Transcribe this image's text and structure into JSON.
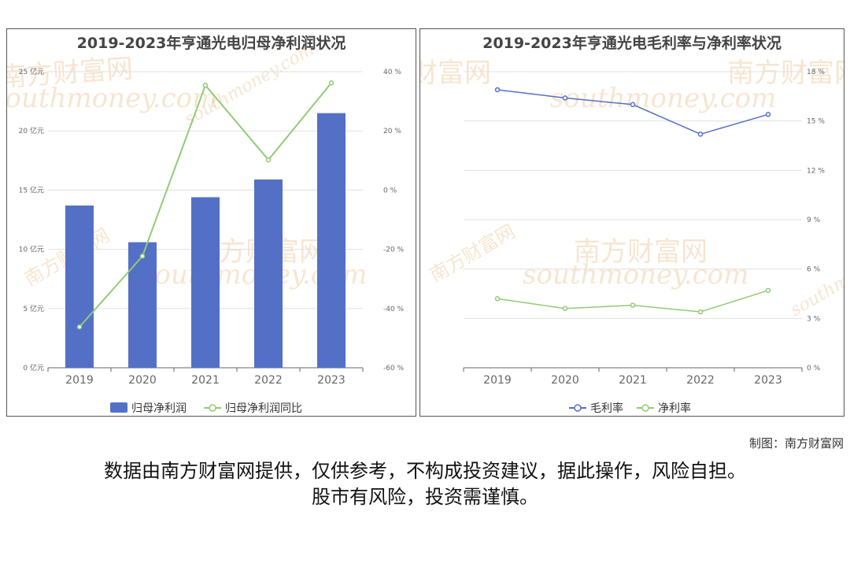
{
  "watermark": {
    "cn": "南方财富网",
    "en": "southmoney.com"
  },
  "credit": "制图：南方财富网",
  "disclaimer": {
    "line1": "数据由南方财富网提供，仅供参考，不构成投资建议，据此操作，风险自担。",
    "line2": "股市有风险，投资需谨慎。"
  },
  "colors": {
    "bar": "#5470c6",
    "line_green": "#91cc75",
    "line_blue": "#5470c6",
    "axis": "#666666",
    "grid": "#e0e0e0"
  },
  "chart_data": [
    {
      "type": "bar",
      "title": "2019-2023年亨通光电归母净利润状况",
      "categories": [
        "2019",
        "2020",
        "2021",
        "2022",
        "2023"
      ],
      "series": [
        {
          "name": "归母净利润",
          "type": "bar",
          "axis": "left",
          "values": [
            13.7,
            10.6,
            14.4,
            15.9,
            21.5
          ]
        },
        {
          "name": "归母净利润同比",
          "type": "line",
          "axis": "right",
          "values": [
            -46.2,
            -22.3,
            35.4,
            10.2,
            36.2
          ]
        }
      ],
      "left_axis": {
        "ylim": [
          0,
          25
        ],
        "ticks": [
          "0 亿元",
          "5 亿元",
          "10 亿元",
          "15 亿元",
          "20 亿元",
          "25 亿元"
        ]
      },
      "right_axis": {
        "ylim": [
          -60,
          40
        ],
        "ticks": [
          "-60 %",
          "-40 %",
          "-20 %",
          "0 %",
          "20 %",
          "40 %"
        ]
      },
      "grid": true,
      "legend": "bottom"
    },
    {
      "type": "line",
      "title": "2019-2023年亨通光电毛利率与净利率状况",
      "categories": [
        "2019",
        "2020",
        "2021",
        "2022",
        "2023"
      ],
      "series": [
        {
          "name": "毛利率",
          "values": [
            16.9,
            16.4,
            16.0,
            14.2,
            15.4
          ]
        },
        {
          "name": "净利率",
          "values": [
            4.2,
            3.6,
            3.8,
            3.4,
            4.7
          ]
        }
      ],
      "right_axis": {
        "ylim": [
          0,
          18
        ],
        "ticks": [
          "0 %",
          "3 %",
          "6 %",
          "9 %",
          "12 %",
          "15 %",
          "18 %"
        ]
      },
      "grid": true,
      "legend": "bottom"
    }
  ]
}
